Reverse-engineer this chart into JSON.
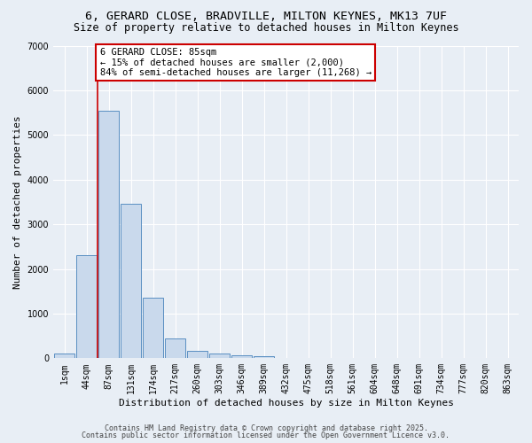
{
  "title_line1": "6, GERARD CLOSE, BRADVILLE, MILTON KEYNES, MK13 7UF",
  "title_line2": "Size of property relative to detached houses in Milton Keynes",
  "xlabel": "Distribution of detached houses by size in Milton Keynes",
  "ylabel": "Number of detached properties",
  "categories": [
    "1sqm",
    "44sqm",
    "87sqm",
    "131sqm",
    "174sqm",
    "217sqm",
    "260sqm",
    "303sqm",
    "346sqm",
    "389sqm",
    "432sqm",
    "475sqm",
    "518sqm",
    "561sqm",
    "604sqm",
    "648sqm",
    "691sqm",
    "734sqm",
    "777sqm",
    "820sqm",
    "863sqm"
  ],
  "values": [
    100,
    2300,
    5550,
    3450,
    1350,
    450,
    175,
    100,
    75,
    50,
    0,
    0,
    0,
    0,
    0,
    0,
    0,
    0,
    0,
    0,
    0
  ],
  "bar_color": "#c9d9ec",
  "bar_edge_color": "#5a8fc2",
  "red_line_index": 2,
  "red_line_color": "#cc0000",
  "annotation_text": "6 GERARD CLOSE: 85sqm\n← 15% of detached houses are smaller (2,000)\n84% of semi-detached houses are larger (11,268) →",
  "annotation_box_color": "#ffffff",
  "annotation_box_edge_color": "#cc0000",
  "ylim": [
    0,
    7000
  ],
  "yticks": [
    0,
    1000,
    2000,
    3000,
    4000,
    5000,
    6000,
    7000
  ],
  "background_color": "#e8eef5",
  "grid_color": "#ffffff",
  "footer_line1": "Contains HM Land Registry data © Crown copyright and database right 2025.",
  "footer_line2": "Contains public sector information licensed under the Open Government Licence v3.0.",
  "title_fontsize": 9.5,
  "subtitle_fontsize": 8.5,
  "axis_label_fontsize": 8,
  "tick_fontsize": 7,
  "annotation_fontsize": 7.5,
  "footer_fontsize": 6
}
